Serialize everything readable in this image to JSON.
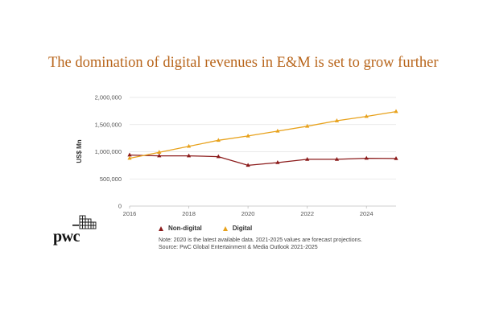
{
  "chart_data": {
    "type": "line",
    "title": "The domination of digital revenues in E&M is set to grow further",
    "ylabel": "US$ Mn",
    "xlabel": "",
    "x": [
      2016,
      2017,
      2018,
      2019,
      2020,
      2021,
      2022,
      2023,
      2024,
      2025
    ],
    "xticks": [
      "2016",
      "2018",
      "2020",
      "2022",
      "2024"
    ],
    "yticks": [
      "0",
      "500,000",
      "1,000,000",
      "1,500,000",
      "2,000,000"
    ],
    "ylim": [
      0,
      2000000
    ],
    "xlim": [
      2016,
      2025
    ],
    "grid": "horizontal",
    "legend_position": "bottom",
    "series": [
      {
        "name": "Non-digital",
        "color": "#8b1a1a",
        "values": [
          940000,
          925000,
          925000,
          910000,
          750000,
          800000,
          860000,
          860000,
          880000,
          875000
        ]
      },
      {
        "name": "Digital",
        "color": "#e8a21c",
        "values": [
          880000,
          990000,
          1100000,
          1210000,
          1290000,
          1380000,
          1470000,
          1570000,
          1650000,
          1740000
        ]
      }
    ]
  },
  "notes": {
    "line1": "Note: 2020 is the latest available data. 2021-2025 values are forecast projections.",
    "line2": "Source: PwC Global Entertainment & Media Outlook 2021-2025"
  },
  "logo": {
    "text": "pwc"
  }
}
